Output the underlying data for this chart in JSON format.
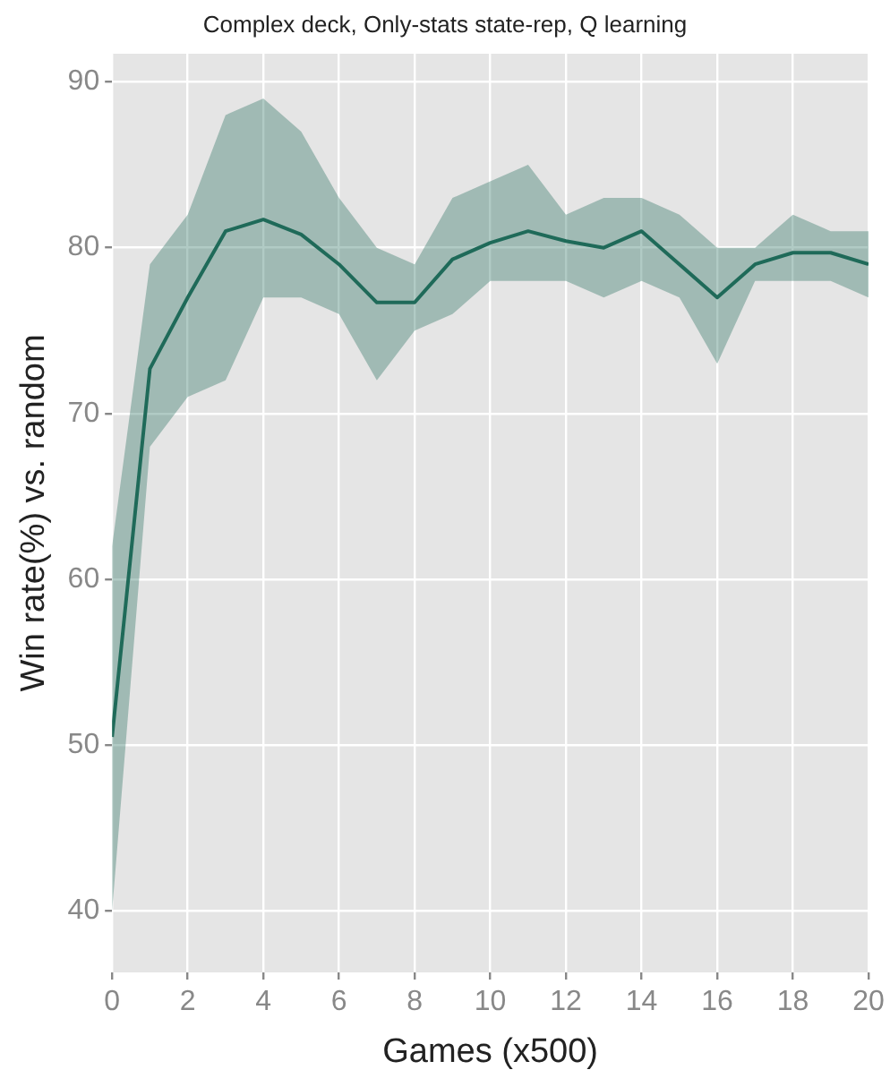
{
  "chart_data": {
    "type": "line",
    "title": "Complex deck, Only-stats state-rep, Q learning",
    "xlabel": "Games (x500)",
    "ylabel": "Win rate(%) vs. random",
    "x": [
      0,
      1,
      2,
      3,
      4,
      5,
      6,
      7,
      8,
      9,
      10,
      11,
      12,
      13,
      14,
      15,
      16,
      17,
      18,
      19,
      20
    ],
    "series": [
      {
        "color": "#1f6b5a",
        "values": [
          50.5,
          72.7,
          77,
          81,
          81.7,
          80.8,
          79,
          76.7,
          76.7,
          79.3,
          80.3,
          81,
          80.4,
          80,
          81,
          79,
          77,
          79,
          79.7,
          79.7,
          79
        ],
        "lower": [
          40,
          68,
          71,
          72,
          77,
          77,
          76,
          72,
          75,
          76,
          78,
          78,
          78,
          77,
          78,
          77,
          73,
          78,
          78,
          78,
          77
        ],
        "upper": [
          62,
          79,
          82,
          88,
          89,
          87,
          83,
          80,
          79,
          83,
          84,
          85,
          82,
          83,
          83,
          82,
          80,
          80,
          82,
          81,
          81
        ]
      }
    ],
    "xlim": [
      0,
      20
    ],
    "xticks": [
      0,
      2,
      4,
      6,
      8,
      10,
      12,
      14,
      16,
      18,
      20
    ],
    "ylim": [
      36.3,
      91.7
    ],
    "yticks": [
      40,
      50,
      60,
      70,
      80,
      90
    ],
    "grid": true,
    "legend": false,
    "marker": "none",
    "line_style": "solid"
  }
}
